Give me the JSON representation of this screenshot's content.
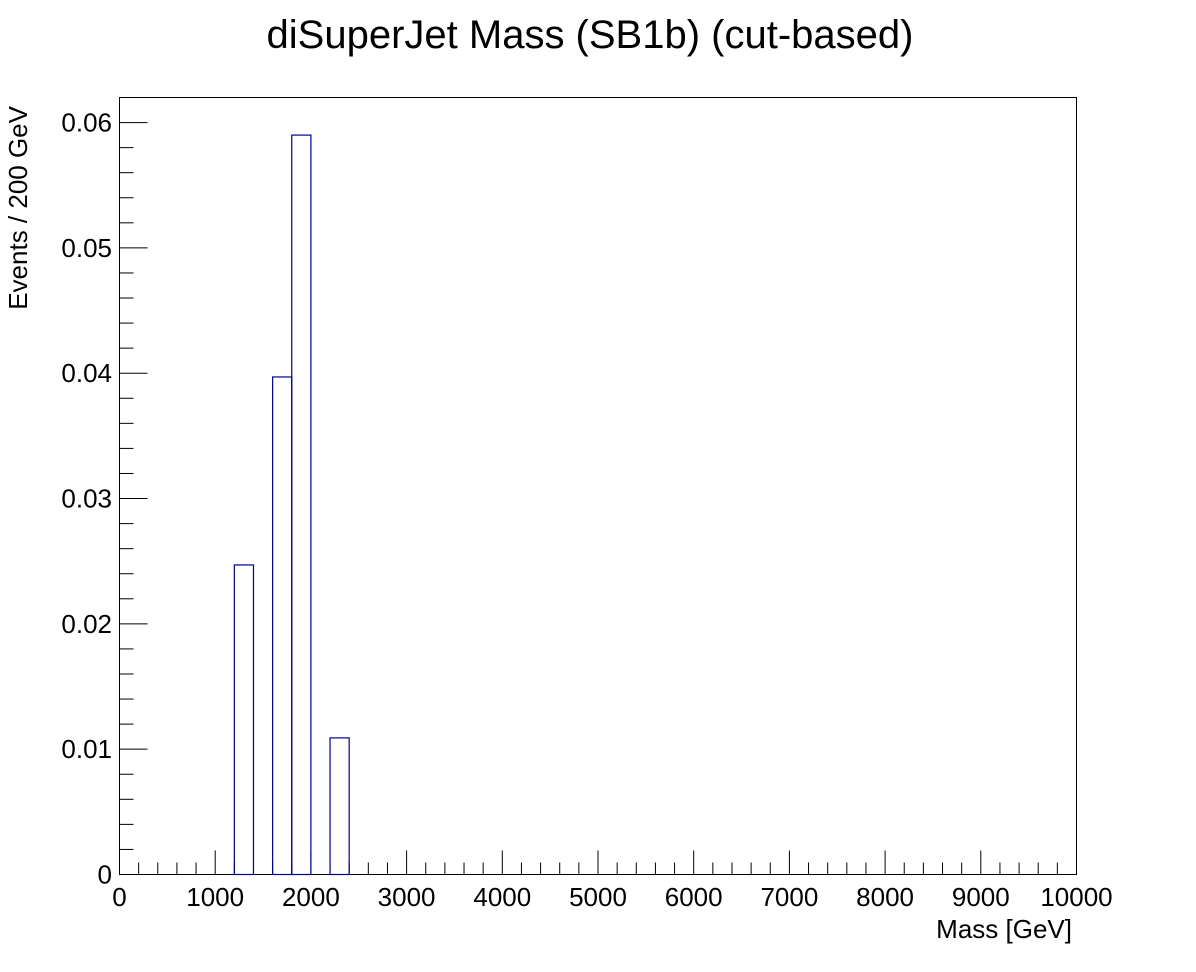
{
  "chart_data": {
    "type": "bar",
    "title": "diSuperJet Mass (SB1b) (cut-based)",
    "xlabel": "Mass [GeV]",
    "ylabel": "Events / 200 GeV",
    "xlim": [
      0,
      10000
    ],
    "ylim": [
      0,
      0.062
    ],
    "bin_width": 200,
    "grid": false,
    "legend": "none",
    "color": "#000099",
    "x_ticks": [
      0,
      1000,
      2000,
      3000,
      4000,
      5000,
      6000,
      7000,
      8000,
      9000,
      10000
    ],
    "x_tick_labels": [
      "0",
      "1000",
      "2000",
      "3000",
      "4000",
      "5000",
      "6000",
      "7000",
      "8000",
      "9000",
      "10000"
    ],
    "y_ticks": [
      0,
      0.01,
      0.02,
      0.03,
      0.04,
      0.05,
      0.06
    ],
    "y_tick_labels": [
      "0",
      "0.01",
      "0.02",
      "0.03",
      "0.04",
      "0.05",
      "0.06"
    ],
    "bins": [
      {
        "x_low": 1200,
        "x_high": 1400,
        "value": 0.0247
      },
      {
        "x_low": 1600,
        "x_high": 1800,
        "value": 0.0397
      },
      {
        "x_low": 1800,
        "x_high": 2000,
        "value": 0.059
      },
      {
        "x_low": 2200,
        "x_high": 2400,
        "value": 0.0109
      }
    ]
  }
}
